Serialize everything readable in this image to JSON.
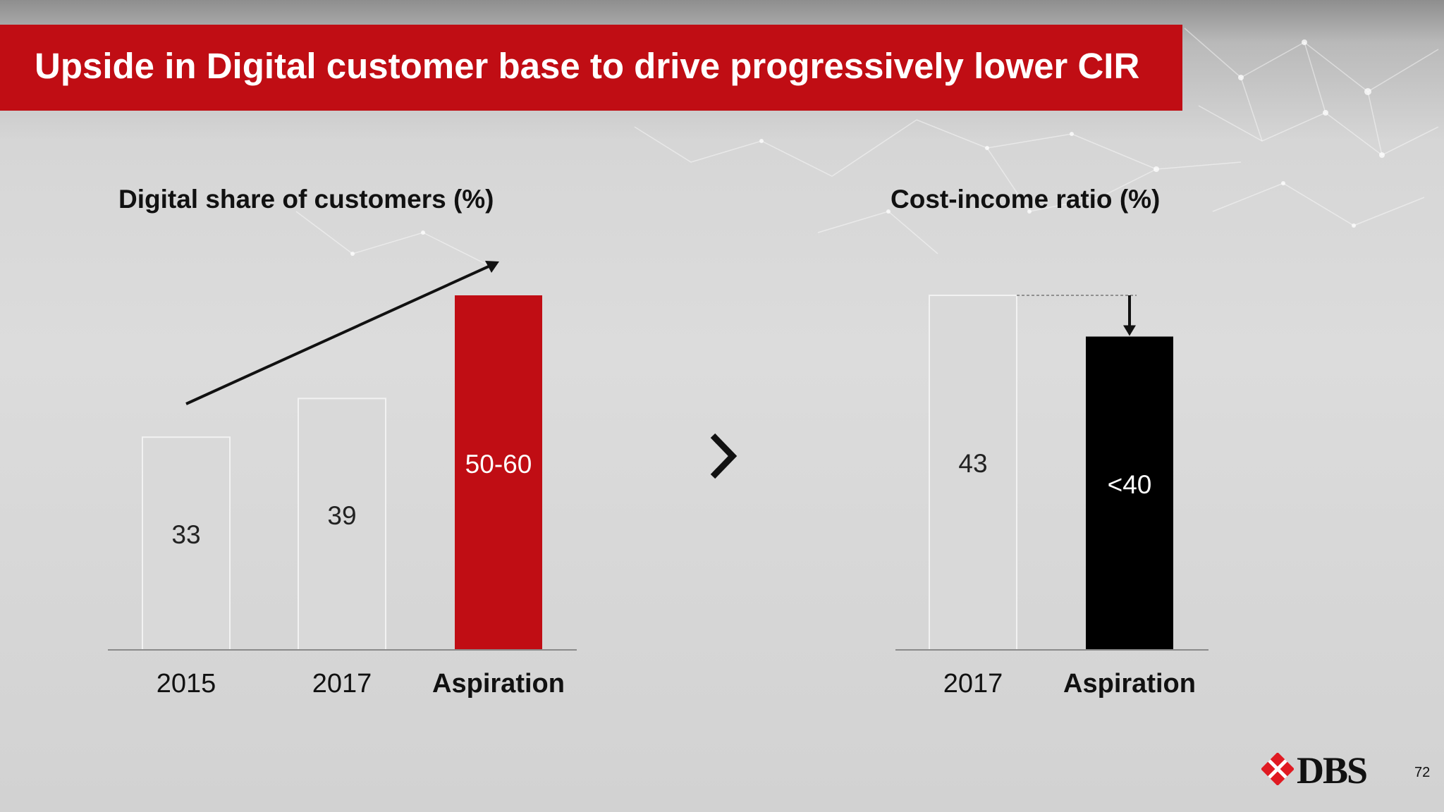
{
  "title": "Upside in Digital customer base to drive progressively lower CIR",
  "page_number": "72",
  "logo_text": "DBS",
  "colors": {
    "brand_red": "#c00d14",
    "light_bar": "#d9d9d9",
    "dark_bar": "#000000"
  },
  "transition_icon": "chevron-right-icon",
  "chart_data": [
    {
      "type": "bar",
      "title": "Digital share of customers (%)",
      "categories": [
        "2015",
        "2017",
        "Aspiration"
      ],
      "values": [
        33,
        39,
        55
      ],
      "value_labels": [
        "33",
        "39",
        "50-60"
      ],
      "bar_colors": [
        "#d9d9d9",
        "#d9d9d9",
        "#c00d14"
      ],
      "label_colors": [
        "#222222",
        "#222222",
        "#ffffff"
      ],
      "bold_categories": [
        false,
        false,
        true
      ],
      "annotation": "upward-trend-arrow",
      "ylim": [
        0,
        55
      ]
    },
    {
      "type": "bar",
      "title": "Cost-income ratio (%)",
      "categories": [
        "2017",
        "Aspiration"
      ],
      "values": [
        43,
        38
      ],
      "value_labels": [
        "43",
        "<40"
      ],
      "bar_colors": [
        "#d9d9d9",
        "#000000"
      ],
      "label_colors": [
        "#222222",
        "#ffffff"
      ],
      "bold_categories": [
        false,
        true
      ],
      "annotation": "downward-arrow",
      "ylim": [
        0,
        43
      ]
    }
  ]
}
